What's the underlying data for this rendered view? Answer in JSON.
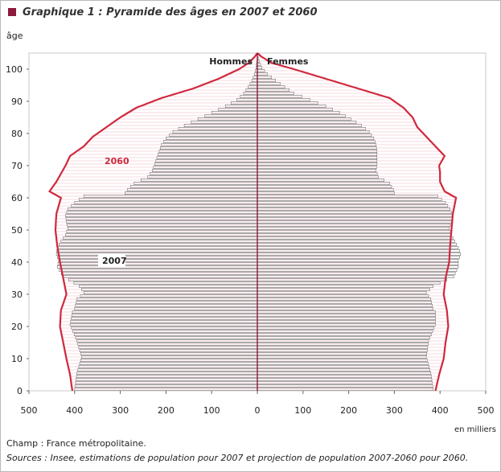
{
  "header": {
    "title": "Graphique 1 : Pyramide des âges en 2007 et 2060"
  },
  "footer": {
    "champ": "Champ : France métropolitaine.",
    "sources": "Sources : Insee, estimations de population pour 2007 et projection de population 2007-2060 pour 2060."
  },
  "colors": {
    "accent": "#8b1a3c",
    "line2060": "#d0283c",
    "bar2007": "#ffffff",
    "barStroke": "#555555"
  },
  "chart_data": {
    "type": "population-pyramid",
    "ylabel": "âge",
    "xunit": "en milliers",
    "left_label": "Hommes",
    "right_label": "Femmes",
    "xlim": [
      0,
      500
    ],
    "ylim": [
      0,
      105
    ],
    "x_ticks": [
      500,
      400,
      300,
      200,
      100,
      0,
      100,
      200,
      300,
      400,
      500
    ],
    "y_ticks": [
      0,
      10,
      20,
      30,
      40,
      50,
      60,
      70,
      80,
      90,
      100
    ],
    "series_labels": {
      "y2007": "2007",
      "y2060": "2060"
    },
    "series": [
      {
        "name": "2007",
        "style": "bars",
        "men_keypoints": [
          [
            0,
            400
          ],
          [
            5,
            395
          ],
          [
            10,
            385
          ],
          [
            15,
            395
          ],
          [
            20,
            410
          ],
          [
            24,
            405
          ],
          [
            25,
            400
          ],
          [
            28,
            395
          ],
          [
            30,
            380
          ],
          [
            32,
            390
          ],
          [
            35,
            425
          ],
          [
            38,
            438
          ],
          [
            40,
            435
          ],
          [
            42,
            440
          ],
          [
            44,
            438
          ],
          [
            46,
            430
          ],
          [
            48,
            420
          ],
          [
            50,
            415
          ],
          [
            52,
            418
          ],
          [
            54,
            420
          ],
          [
            56,
            415
          ],
          [
            58,
            400
          ],
          [
            60,
            380
          ],
          [
            61,
            290
          ],
          [
            62,
            285
          ],
          [
            64,
            270
          ],
          [
            66,
            240
          ],
          [
            68,
            230
          ],
          [
            70,
            225
          ],
          [
            72,
            220
          ],
          [
            74,
            215
          ],
          [
            76,
            210
          ],
          [
            78,
            200
          ],
          [
            80,
            185
          ],
          [
            82,
            160
          ],
          [
            84,
            130
          ],
          [
            86,
            100
          ],
          [
            88,
            70
          ],
          [
            90,
            45
          ],
          [
            92,
            30
          ],
          [
            94,
            20
          ],
          [
            96,
            12
          ],
          [
            98,
            6
          ],
          [
            100,
            3
          ],
          [
            102,
            1
          ],
          [
            104,
            0
          ]
        ],
        "women_keypoints": [
          [
            0,
            385
          ],
          [
            5,
            380
          ],
          [
            10,
            370
          ],
          [
            15,
            375
          ],
          [
            20,
            390
          ],
          [
            24,
            390
          ],
          [
            25,
            385
          ],
          [
            28,
            380
          ],
          [
            30,
            370
          ],
          [
            32,
            385
          ],
          [
            35,
            430
          ],
          [
            38,
            440
          ],
          [
            40,
            440
          ],
          [
            42,
            445
          ],
          [
            44,
            440
          ],
          [
            46,
            432
          ],
          [
            48,
            425
          ],
          [
            50,
            420
          ],
          [
            52,
            425
          ],
          [
            54,
            428
          ],
          [
            56,
            422
          ],
          [
            58,
            412
          ],
          [
            60,
            395
          ],
          [
            61,
            300
          ],
          [
            62,
            298
          ],
          [
            64,
            290
          ],
          [
            66,
            265
          ],
          [
            68,
            260
          ],
          [
            70,
            262
          ],
          [
            72,
            262
          ],
          [
            74,
            262
          ],
          [
            76,
            260
          ],
          [
            78,
            255
          ],
          [
            80,
            245
          ],
          [
            82,
            228
          ],
          [
            84,
            205
          ],
          [
            86,
            180
          ],
          [
            88,
            150
          ],
          [
            90,
            115
          ],
          [
            92,
            80
          ],
          [
            94,
            60
          ],
          [
            96,
            40
          ],
          [
            98,
            22
          ],
          [
            100,
            10
          ],
          [
            102,
            4
          ],
          [
            104,
            0
          ]
        ]
      },
      {
        "name": "2060",
        "style": "line",
        "men_keypoints": [
          [
            0,
            405
          ],
          [
            5,
            410
          ],
          [
            10,
            418
          ],
          [
            15,
            425
          ],
          [
            20,
            432
          ],
          [
            25,
            430
          ],
          [
            30,
            418
          ],
          [
            35,
            425
          ],
          [
            40,
            432
          ],
          [
            45,
            438
          ],
          [
            50,
            442
          ],
          [
            55,
            440
          ],
          [
            60,
            430
          ],
          [
            62,
            455
          ],
          [
            65,
            440
          ],
          [
            68,
            428
          ],
          [
            70,
            420
          ],
          [
            73,
            410
          ],
          [
            76,
            380
          ],
          [
            79,
            360
          ],
          [
            82,
            330
          ],
          [
            85,
            300
          ],
          [
            88,
            265
          ],
          [
            91,
            210
          ],
          [
            94,
            140
          ],
          [
            97,
            85
          ],
          [
            100,
            40
          ],
          [
            102,
            18
          ],
          [
            104,
            5
          ],
          [
            105,
            0
          ]
        ],
        "women_keypoints": [
          [
            0,
            390
          ],
          [
            5,
            398
          ],
          [
            10,
            408
          ],
          [
            15,
            412
          ],
          [
            20,
            418
          ],
          [
            25,
            415
          ],
          [
            30,
            408
          ],
          [
            35,
            412
          ],
          [
            40,
            420
          ],
          [
            45,
            422
          ],
          [
            50,
            425
          ],
          [
            55,
            428
          ],
          [
            60,
            435
          ],
          [
            62,
            410
          ],
          [
            65,
            400
          ],
          [
            68,
            400
          ],
          [
            70,
            398
          ],
          [
            73,
            410
          ],
          [
            76,
            390
          ],
          [
            79,
            370
          ],
          [
            82,
            350
          ],
          [
            85,
            340
          ],
          [
            88,
            320
          ],
          [
            91,
            290
          ],
          [
            94,
            220
          ],
          [
            97,
            150
          ],
          [
            100,
            80
          ],
          [
            102,
            30
          ],
          [
            104,
            8
          ],
          [
            105,
            0
          ]
        ]
      }
    ]
  }
}
